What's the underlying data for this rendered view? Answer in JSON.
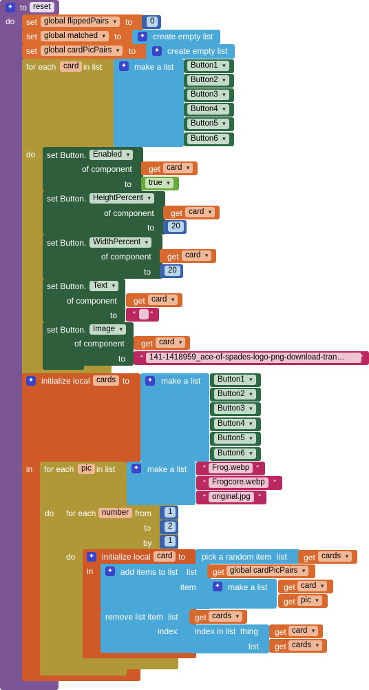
{
  "proc": {
    "to": "to",
    "name": "reset",
    "do": "do"
  },
  "kw": {
    "set": "set",
    "to": "to",
    "for_each": "for each",
    "in_list": "in list",
    "do": "do",
    "in": "in",
    "set_button": "set Button.",
    "of_component": "of component",
    "get": "get",
    "make_a_list": "make a list",
    "create_empty_list": "create empty list",
    "initialize_local": "initialize local",
    "from": "from",
    "by": "by",
    "pick_random": "pick a random item",
    "list": "list",
    "add_items": "add items to list",
    "item": "item",
    "remove_item": "remove list item",
    "index": "index",
    "index_in_list": "index in list",
    "thing": "thing"
  },
  "globals": {
    "flipped": "global flippedPairs",
    "matched": "global matched",
    "cardpic": "global cardPicPairs"
  },
  "values": {
    "zero": "0",
    "true": "true",
    "twenty": "20",
    "one": "1",
    "two": "2",
    "empty": ""
  },
  "vars": {
    "card": "card",
    "cards": "cards",
    "pic": "pic",
    "number": "number"
  },
  "buttons": [
    "Button1",
    "Button2",
    "Button3",
    "Button4",
    "Button5",
    "Button6"
  ],
  "props": {
    "enabled": "Enabled",
    "height": "HeightPercent",
    "width": "WidthPercent",
    "text": "Text",
    "image": "Image"
  },
  "image_text": "141-1418959_ace-of-spades-logo-png-download-tran…",
  "pics": [
    "Frog.webp",
    "Frogcore.webp",
    "original.jpg"
  ],
  "colors": {
    "procedure": "#7b5595",
    "control": "#b09838",
    "variable": "#d05a27",
    "list": "#4aa8d8",
    "component": "#2e5e3c",
    "logic": "#69a83c",
    "math": "#3a63ac",
    "text": "#b9285f"
  }
}
